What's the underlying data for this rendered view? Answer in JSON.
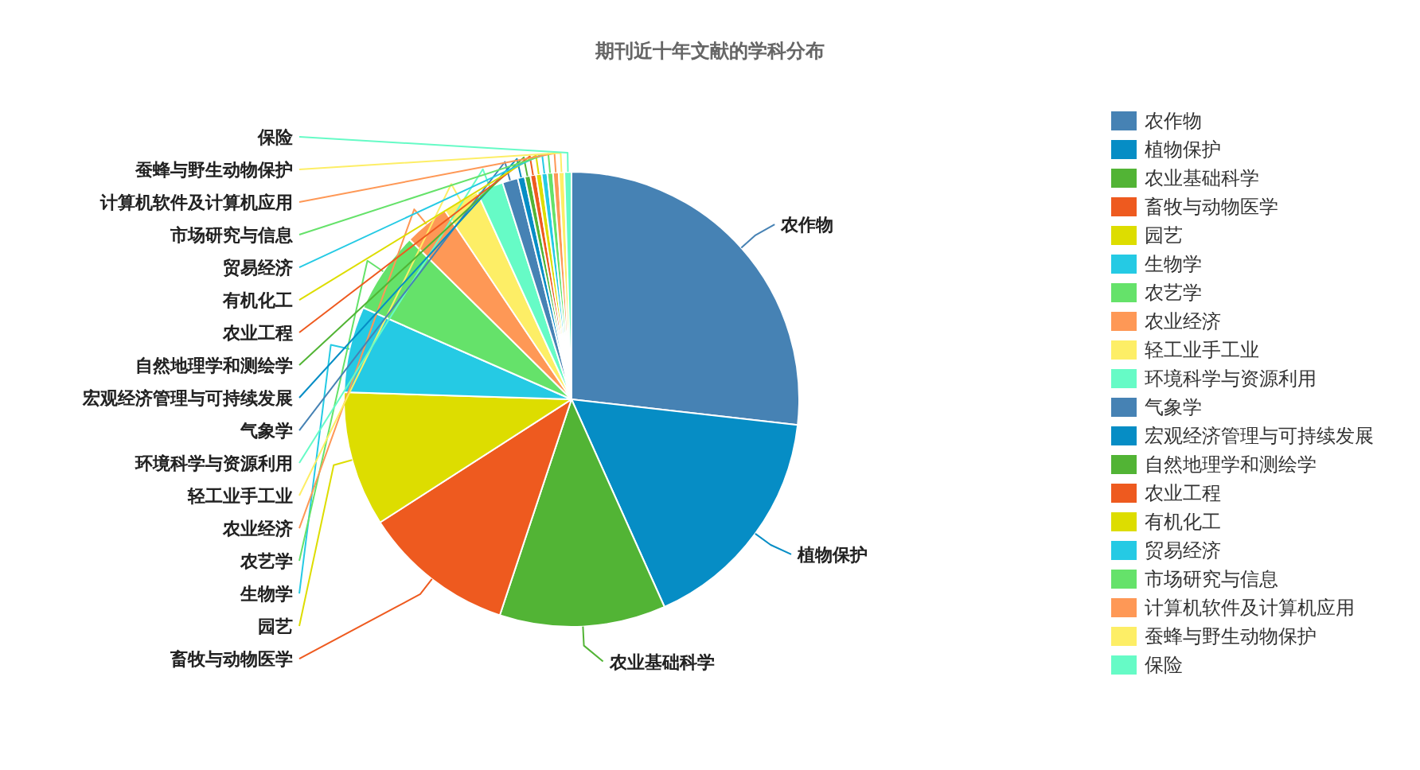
{
  "chart_data": {
    "type": "pie",
    "title": "期刊近十年文献的学科分布",
    "categories": [
      "农作物",
      "植物保护",
      "农业基础科学",
      "畜牧与动物医学",
      "园艺",
      "生物学",
      "农艺学",
      "农业经济",
      "轻工业手工业",
      "环境科学与资源利用",
      "气象学",
      "宏观经济管理与可持续发展",
      "自然地理学和测绘学",
      "农业工程",
      "有机化工",
      "贸易经济",
      "市场研究与信息",
      "计算机软件及计算机应用",
      "蚕蜂与野生动物保护",
      "保险"
    ],
    "values": [
      26.8,
      16.5,
      11.8,
      10.8,
      9.6,
      6.1,
      5.8,
      3.2,
      2.6,
      1.9,
      1.1,
      0.5,
      0.4,
      0.4,
      0.4,
      0.4,
      0.4,
      0.4,
      0.4,
      0.5
    ],
    "colors": [
      "#4682b4",
      "#068dc5",
      "#52b435",
      "#ee5a1f",
      "#dddd00",
      "#25cae4",
      "#65e26a",
      "#fe9856",
      "#fdee66",
      "#66fbc6",
      "#4682b4",
      "#068dc5",
      "#52b435",
      "#ee5a1f",
      "#dddd00",
      "#25cae4",
      "#65e26a",
      "#fe9856",
      "#fdee66",
      "#66fbc6"
    ],
    "legend": "right"
  }
}
